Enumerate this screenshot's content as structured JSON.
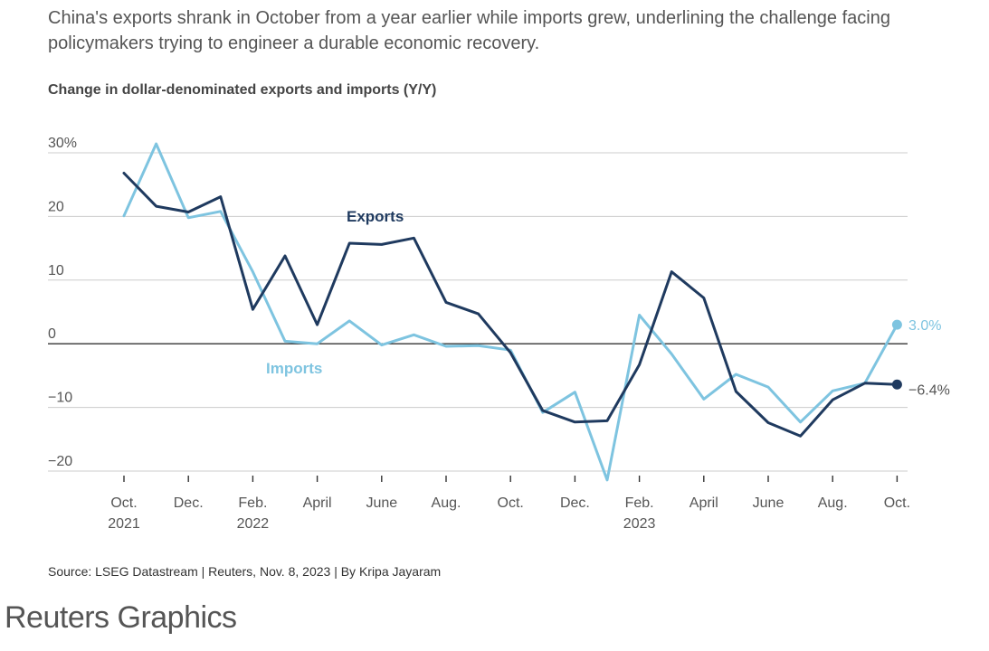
{
  "subtitle": "China's exports shrank in October from a year earlier while imports grew, underlining the challenge facing policymakers trying to engineer a durable economic recovery.",
  "source": "Source: LSEG Datastream | Reuters, Nov. 8, 2023 | By Kripa Jayaram",
  "brand": "Reuters Graphics",
  "colors": {
    "exports": "#1f3a5f",
    "imports": "#7ec4e0",
    "grid": "#cccccc",
    "zero": "#333333"
  },
  "chart_data": {
    "type": "line",
    "title": "Change in dollar-denominated exports and imports (Y/Y)",
    "xlabel": "",
    "ylabel": "",
    "ylim": [
      -20,
      30
    ],
    "y_ticks": [
      {
        "value": 30,
        "label": "30%"
      },
      {
        "value": 20,
        "label": "20"
      },
      {
        "value": 10,
        "label": "10"
      },
      {
        "value": 0,
        "label": "0"
      },
      {
        "value": -10,
        "label": "−10"
      },
      {
        "value": -20,
        "label": "−20"
      }
    ],
    "x_ticks": [
      {
        "index": 0,
        "line1": "Oct.",
        "line2": "2021"
      },
      {
        "index": 2,
        "line1": "Dec.",
        "line2": ""
      },
      {
        "index": 4,
        "line1": "Feb.",
        "line2": "2022"
      },
      {
        "index": 6,
        "line1": "April",
        "line2": ""
      },
      {
        "index": 8,
        "line1": "June",
        "line2": ""
      },
      {
        "index": 10,
        "line1": "Aug.",
        "line2": ""
      },
      {
        "index": 12,
        "line1": "Oct.",
        "line2": ""
      },
      {
        "index": 14,
        "line1": "Dec.",
        "line2": ""
      },
      {
        "index": 16,
        "line1": "Feb.",
        "line2": "2023"
      },
      {
        "index": 18,
        "line1": "April",
        "line2": ""
      },
      {
        "index": 20,
        "line1": "June",
        "line2": ""
      },
      {
        "index": 22,
        "line1": "Aug.",
        "line2": ""
      },
      {
        "index": 24,
        "line1": "Oct.",
        "line2": ""
      }
    ],
    "categories": [
      "Oct 2021",
      "Nov 2021",
      "Dec 2021",
      "Jan 2022",
      "Feb 2022",
      "Mar 2022",
      "Apr 2022",
      "May 2022",
      "Jun 2022",
      "Jul 2022",
      "Aug 2022",
      "Sep 2022",
      "Oct 2022",
      "Nov 2022",
      "Dec 2022",
      "Jan 2023",
      "Feb 2023",
      "Mar 2023",
      "Apr 2023",
      "May 2023",
      "Jun 2023",
      "Jul 2023",
      "Aug 2023",
      "Sep 2023",
      "Oct 2023"
    ],
    "series": [
      {
        "name": "Exports",
        "label": "Exports",
        "end_label": "−6.4%",
        "values": [
          26.8,
          21.6,
          20.7,
          23.1,
          5.4,
          13.8,
          3.0,
          15.8,
          15.6,
          16.6,
          6.5,
          4.7,
          -1.4,
          -10.5,
          -12.3,
          -12.1,
          -3.3,
          11.3,
          7.2,
          -7.5,
          -12.4,
          -14.5,
          -8.8,
          -6.2,
          -6.4
        ]
      },
      {
        "name": "Imports",
        "label": "Imports",
        "end_label": "3.0%",
        "values": [
          20.1,
          31.4,
          19.8,
          20.8,
          11.3,
          0.4,
          0.0,
          3.6,
          -0.2,
          1.4,
          -0.4,
          -0.3,
          -1.0,
          -10.8,
          -7.6,
          -21.4,
          4.5,
          -1.6,
          -8.7,
          -4.8,
          -6.8,
          -12.3,
          -7.4,
          -6.2,
          3.0
        ]
      }
    ]
  }
}
